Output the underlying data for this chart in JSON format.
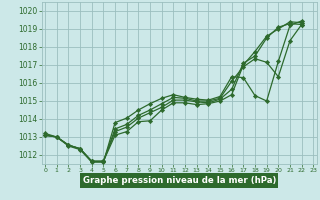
{
  "title": "Graphe pression niveau de la mer (hPa)",
  "line_color": "#2d6a2d",
  "bg_color": "#cce8e8",
  "grid_color": "#9bbfbf",
  "title_bg": "#2d6a2d",
  "title_fg": "#ffffff",
  "ylim": [
    1011.5,
    1020.5
  ],
  "xlim": [
    -0.3,
    23.3
  ],
  "yticks": [
    1012,
    1013,
    1014,
    1015,
    1016,
    1017,
    1018,
    1019,
    1020
  ],
  "xticks": [
    0,
    1,
    2,
    3,
    4,
    5,
    6,
    7,
    8,
    9,
    10,
    11,
    12,
    13,
    14,
    15,
    16,
    17,
    18,
    19,
    20,
    21,
    22,
    23
  ],
  "series": [
    {
      "x": [
        0,
        1,
        2,
        3,
        4,
        5,
        6,
        7,
        8,
        9,
        10,
        11,
        12,
        13,
        14,
        15,
        16,
        17,
        18,
        19,
        20,
        21,
        22
      ],
      "y": [
        1013.1,
        1013.0,
        1012.55,
        1012.35,
        1011.65,
        1011.65,
        1013.1,
        1013.3,
        1013.85,
        1013.9,
        1014.5,
        1014.9,
        1014.9,
        1014.8,
        1014.85,
        1015.0,
        1015.35,
        1017.0,
        1017.75,
        1018.6,
        1019.0,
        1019.4,
        1019.35
      ]
    },
    {
      "x": [
        0,
        1,
        2,
        3,
        4,
        5,
        6,
        7,
        8,
        9,
        10,
        11,
        12,
        13,
        14,
        15,
        16,
        17,
        18,
        19,
        20,
        21,
        22
      ],
      "y": [
        1013.1,
        1013.0,
        1012.55,
        1012.35,
        1011.65,
        1011.65,
        1013.3,
        1013.55,
        1014.05,
        1014.35,
        1014.65,
        1015.05,
        1015.05,
        1014.95,
        1014.9,
        1015.1,
        1015.65,
        1017.1,
        1017.5,
        1018.5,
        1019.1,
        1019.3,
        1019.25
      ]
    },
    {
      "x": [
        0,
        1,
        2,
        3,
        4,
        5,
        6,
        7,
        8,
        9,
        10,
        11,
        12,
        13,
        14,
        15,
        16,
        17,
        18,
        19,
        20,
        21,
        22
      ],
      "y": [
        1013.1,
        1013.0,
        1012.55,
        1012.35,
        1011.65,
        1011.65,
        1013.45,
        1013.7,
        1014.2,
        1014.5,
        1014.85,
        1015.2,
        1015.15,
        1015.0,
        1015.0,
        1015.15,
        1016.1,
        1016.9,
        1017.35,
        1017.15,
        1016.35,
        1018.35,
        1019.25
      ]
    },
    {
      "x": [
        0,
        1,
        2,
        3,
        4,
        5,
        6,
        7,
        8,
        9,
        10,
        11,
        12,
        13,
        14,
        15,
        16,
        17,
        18,
        19,
        20,
        21,
        22
      ],
      "y": [
        1013.2,
        1013.0,
        1012.5,
        1012.3,
        1011.6,
        1011.6,
        1013.8,
        1014.05,
        1014.5,
        1014.85,
        1015.15,
        1015.35,
        1015.2,
        1015.1,
        1015.05,
        1015.25,
        1016.35,
        1016.3,
        1015.3,
        1015.0,
        1017.2,
        1019.2,
        1019.45
      ]
    }
  ]
}
